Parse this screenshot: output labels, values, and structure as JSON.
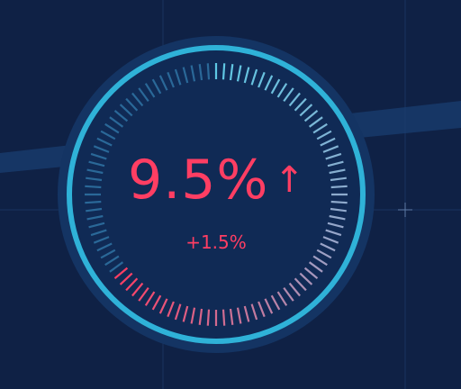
{
  "gauge": {
    "value_label": "9.5%",
    "delta_label": "+1.5%",
    "trend": "up",
    "arrow_glyph": "↑",
    "progress_fraction": 0.64,
    "colors": {
      "background": "#0f2145",
      "halo": "#143463",
      "ring": "#2fb2d8",
      "tick_start": "#5ec8e4",
      "tick_mid": "#9aa3c7",
      "tick_end": "#ff3e63",
      "tick_dim": "#2e6fa0",
      "value": "#ff3e63"
    }
  }
}
